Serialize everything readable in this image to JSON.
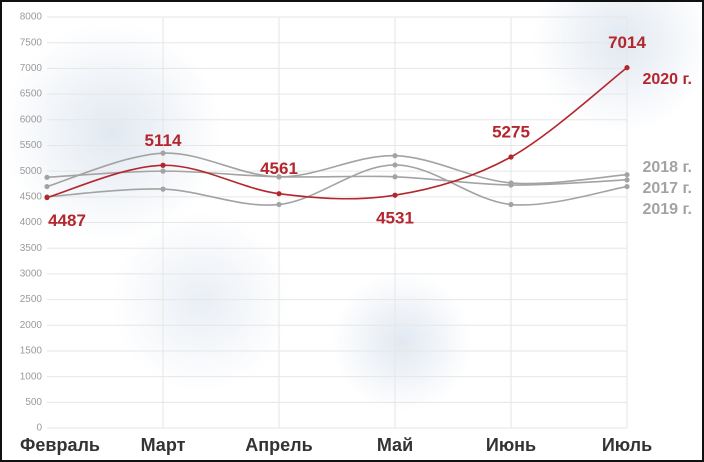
{
  "chart_data": {
    "type": "line",
    "categories": [
      "Февраль",
      "Март",
      "Апрель",
      "Май",
      "Июнь",
      "Июль"
    ],
    "ylim": [
      0,
      8000
    ],
    "yticks": [
      0,
      500,
      1000,
      1500,
      2000,
      2500,
      3000,
      3500,
      4000,
      4500,
      5000,
      5500,
      6000,
      6500,
      7000,
      7500,
      8000
    ],
    "grid": true,
    "series": [
      {
        "name": "2018 г.",
        "color": "#a3a3a3",
        "values": [
          4700,
          5350,
          4890,
          5300,
          4770,
          4930
        ]
      },
      {
        "name": "2017 г.",
        "color": "#a3a3a3",
        "values": [
          4880,
          5000,
          4890,
          4890,
          4730,
          4830
        ]
      },
      {
        "name": "2019 г.",
        "color": "#a3a3a3",
        "values": [
          4500,
          4650,
          4350,
          5120,
          4350,
          4700
        ]
      },
      {
        "name": "2020 г.",
        "color": "#b3262d",
        "values": [
          4487,
          5114,
          4561,
          4531,
          5275,
          7014
        ],
        "data_labels": true
      }
    ]
  }
}
